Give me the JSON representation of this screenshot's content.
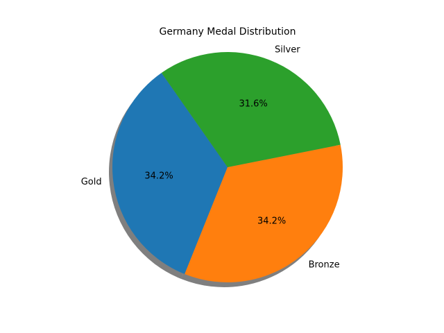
{
  "chart_data": {
    "type": "pie",
    "title": "Germany Medal Distribution",
    "categories": [
      "Gold",
      "Bronze",
      "Silver"
    ],
    "values": [
      34.2,
      34.2,
      31.6
    ],
    "value_labels": [
      "34.2%",
      "34.2%",
      "31.6%"
    ],
    "colors": [
      "#1f77b4",
      "#ff7f0e",
      "#2ca02c"
    ],
    "start_angle_deg": 125,
    "shadow": true
  }
}
